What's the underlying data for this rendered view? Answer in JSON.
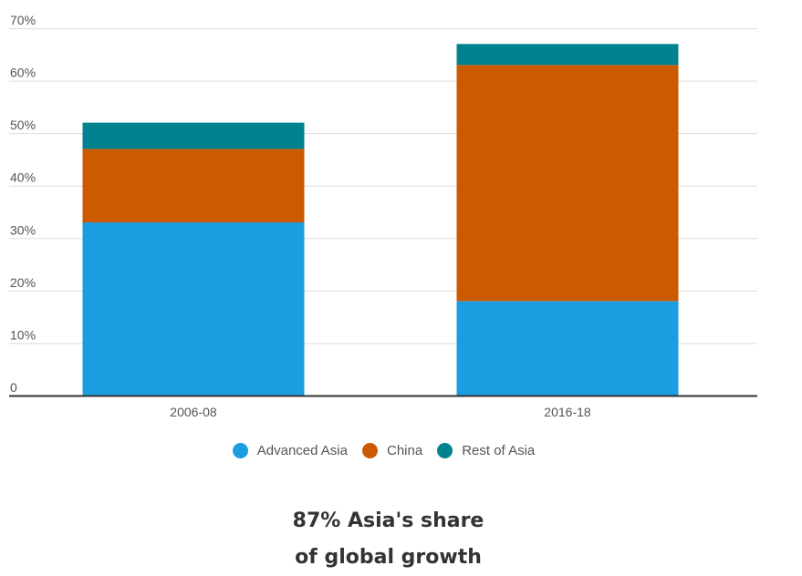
{
  "chart_data": {
    "type": "bar",
    "stacked": true,
    "categories": [
      "2006-08",
      "2016-18"
    ],
    "series": [
      {
        "name": "Advanced Asia",
        "values": [
          33,
          18
        ],
        "color": "#1b9de0"
      },
      {
        "name": "China",
        "values": [
          14,
          45
        ],
        "color": "#cc5a00"
      },
      {
        "name": "Rest of Asia",
        "values": [
          5,
          4
        ],
        "color": "#00838f"
      }
    ],
    "ylim": [
      0,
      70
    ],
    "yticks": [
      {
        "value": 0,
        "label": "0"
      },
      {
        "value": 10,
        "label": "10%"
      },
      {
        "value": 20,
        "label": "20%"
      },
      {
        "value": 30,
        "label": "30%"
      },
      {
        "value": 40,
        "label": "40%"
      },
      {
        "value": 50,
        "label": "50%"
      },
      {
        "value": 60,
        "label": "60%"
      },
      {
        "value": 70,
        "label": "70%"
      }
    ],
    "grid": true,
    "legend_position": "bottom"
  },
  "caption": {
    "line1": "87% Asia's share",
    "line2": "of global growth"
  }
}
